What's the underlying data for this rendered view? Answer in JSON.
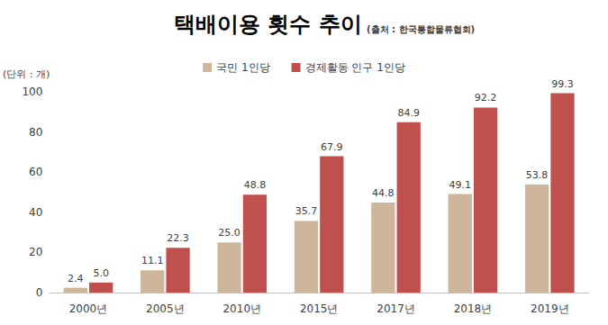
{
  "chart_data": {
    "type": "bar",
    "title": "택배이용 횟수 추이",
    "subtitle": "(출처 : 한국통합물류협회)",
    "y_label": "(단위 : 개)",
    "categories": [
      "2000년",
      "2005년",
      "2010년",
      "2015년",
      "2017년",
      "2018년",
      "2019년"
    ],
    "series": [
      {
        "name": "국민 1인당",
        "color": "#cdb69c",
        "values": [
          2.4,
          11.1,
          25.0,
          35.7,
          44.8,
          49.1,
          53.8
        ],
        "value_labels": [
          "2.4",
          "11.1",
          "25.0",
          "35.7",
          "44.8",
          "49.1",
          "53.8"
        ]
      },
      {
        "name": "경제활동 인구 1인당",
        "color": "#c0504d",
        "values": [
          5.0,
          22.3,
          48.8,
          67.9,
          84.9,
          92.2,
          99.3
        ],
        "value_labels": [
          "5.0",
          "22.3",
          "48.8",
          "67.9",
          "84.9",
          "92.2",
          "99.3"
        ]
      }
    ],
    "ylim": [
      0,
      100
    ],
    "yticks": [
      0,
      20,
      40,
      60,
      80,
      100
    ],
    "grid": false,
    "legend": "top",
    "data_labels": true
  }
}
